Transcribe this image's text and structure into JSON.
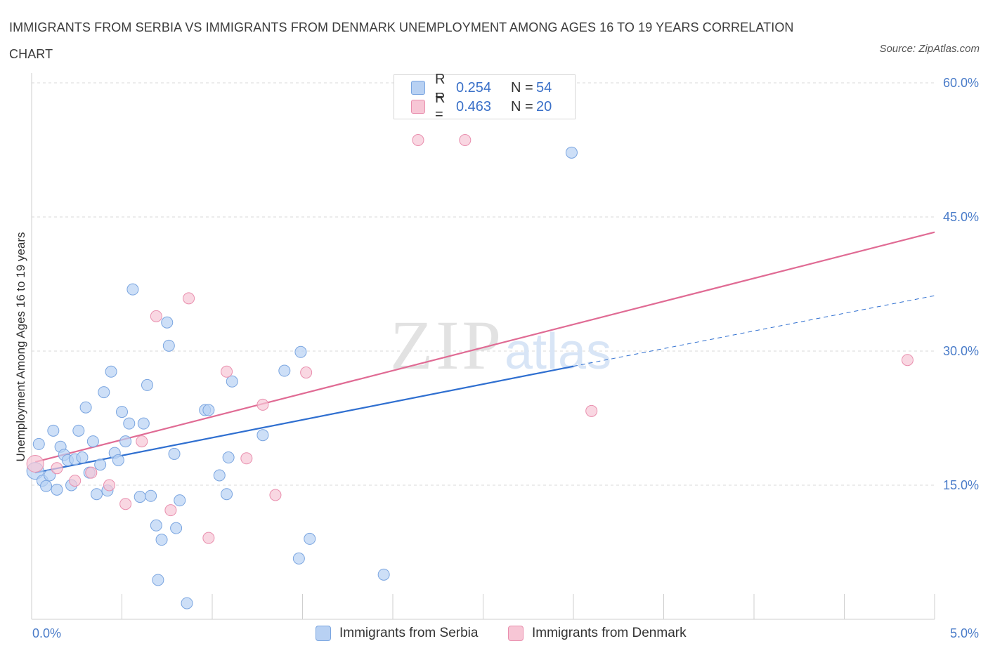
{
  "title": "IMMIGRANTS FROM SERBIA VS IMMIGRANTS FROM DENMARK UNEMPLOYMENT AMONG AGES 16 TO 19 YEARS CORRELATION CHART",
  "source": "Source: ZipAtlas.com",
  "watermark": {
    "zip": "ZIP",
    "atlas": "atlas"
  },
  "legend": {
    "serbia": {
      "r_label": "R =",
      "r_value": "0.254",
      "n_label": "N =",
      "n_value": "54"
    },
    "denmark": {
      "r_label": "R =",
      "r_value": "0.463",
      "n_label": "N =",
      "n_value": "20"
    }
  },
  "colors": {
    "serbia_fill": "#b8d1f3",
    "serbia_stroke": "#7aa5e0",
    "serbia_line": "#2f6fd0",
    "denmark_fill": "#f7c6d5",
    "denmark_stroke": "#e98fae",
    "denmark_line": "#e06b94",
    "grid": "#d9d9d9",
    "axis_text": "#4a7cc9"
  },
  "chart_data": {
    "type": "scatter",
    "title": "IMMIGRANTS FROM SERBIA VS IMMIGRANTS FROM DENMARK UNEMPLOYMENT AMONG AGES 16 TO 19 YEARS CORRELATION CHART",
    "xlabel": "",
    "ylabel": "Unemployment Among Ages 16 to 19 years",
    "xlim": [
      0,
      5
    ],
    "ylim": [
      0,
      60
    ],
    "x_tick_labels": [
      "0.0%",
      "5.0%"
    ],
    "y_ticks": [
      15,
      30,
      45,
      60
    ],
    "y_tick_labels": [
      "15.0%",
      "30.0%",
      "45.0%",
      "60.0%"
    ],
    "grid": true,
    "legend_position": "top-center",
    "series": [
      {
        "name": "Immigrants from Serbia",
        "points": [
          [
            0.02,
            16.6
          ],
          [
            0.04,
            19.6
          ],
          [
            0.06,
            15.5
          ],
          [
            0.08,
            14.9
          ],
          [
            0.1,
            16.1
          ],
          [
            0.12,
            21.1
          ],
          [
            0.14,
            14.5
          ],
          [
            0.16,
            19.3
          ],
          [
            0.18,
            18.4
          ],
          [
            0.2,
            17.8
          ],
          [
            0.22,
            15.0
          ],
          [
            0.24,
            17.9
          ],
          [
            0.26,
            21.1
          ],
          [
            0.28,
            18.1
          ],
          [
            0.3,
            23.7
          ],
          [
            0.32,
            16.4
          ],
          [
            0.34,
            19.9
          ],
          [
            0.36,
            14.0
          ],
          [
            0.38,
            17.3
          ],
          [
            0.4,
            25.4
          ],
          [
            0.42,
            14.4
          ],
          [
            0.44,
            27.7
          ],
          [
            0.46,
            18.6
          ],
          [
            0.48,
            17.8
          ],
          [
            0.5,
            23.2
          ],
          [
            0.52,
            19.9
          ],
          [
            0.54,
            21.9
          ],
          [
            0.56,
            36.9
          ],
          [
            0.6,
            13.7
          ],
          [
            0.62,
            21.9
          ],
          [
            0.64,
            26.2
          ],
          [
            0.66,
            13.8
          ],
          [
            0.69,
            10.5
          ],
          [
            0.7,
            4.4
          ],
          [
            0.72,
            8.9
          ],
          [
            0.75,
            33.2
          ],
          [
            0.76,
            30.6
          ],
          [
            0.79,
            18.5
          ],
          [
            0.8,
            10.2
          ],
          [
            0.82,
            13.3
          ],
          [
            0.86,
            1.8
          ],
          [
            0.96,
            23.4
          ],
          [
            0.98,
            23.4
          ],
          [
            1.04,
            16.1
          ],
          [
            1.08,
            14.0
          ],
          [
            1.09,
            18.1
          ],
          [
            1.11,
            26.6
          ],
          [
            1.28,
            20.6
          ],
          [
            1.4,
            27.8
          ],
          [
            1.48,
            6.8
          ],
          [
            1.49,
            29.9
          ],
          [
            1.54,
            9.0
          ],
          [
            1.95,
            5.0
          ],
          [
            2.99,
            52.2
          ]
        ],
        "trend": {
          "x_solid": [
            0.02,
            3.0
          ],
          "y_solid": [
            16.4,
            28.3
          ],
          "x_dashed": [
            3.0,
            5.0
          ],
          "y_dashed": [
            28.3,
            36.2
          ]
        }
      },
      {
        "name": "Immigrants from Denmark",
        "points": [
          [
            0.02,
            17.4
          ],
          [
            0.14,
            16.9
          ],
          [
            0.24,
            15.5
          ],
          [
            0.33,
            16.4
          ],
          [
            0.43,
            15.0
          ],
          [
            0.52,
            12.9
          ],
          [
            0.61,
            19.9
          ],
          [
            0.69,
            33.9
          ],
          [
            0.77,
            12.2
          ],
          [
            0.87,
            35.9
          ],
          [
            0.98,
            9.1
          ],
          [
            1.08,
            27.7
          ],
          [
            1.19,
            18.0
          ],
          [
            1.28,
            24.0
          ],
          [
            1.35,
            13.9
          ],
          [
            1.52,
            27.6
          ],
          [
            2.14,
            53.6
          ],
          [
            2.4,
            53.6
          ],
          [
            3.1,
            23.3
          ],
          [
            4.85,
            29.0
          ]
        ],
        "trend": {
          "x": [
            0.02,
            5.0
          ],
          "y": [
            17.6,
            43.3
          ]
        }
      }
    ]
  }
}
